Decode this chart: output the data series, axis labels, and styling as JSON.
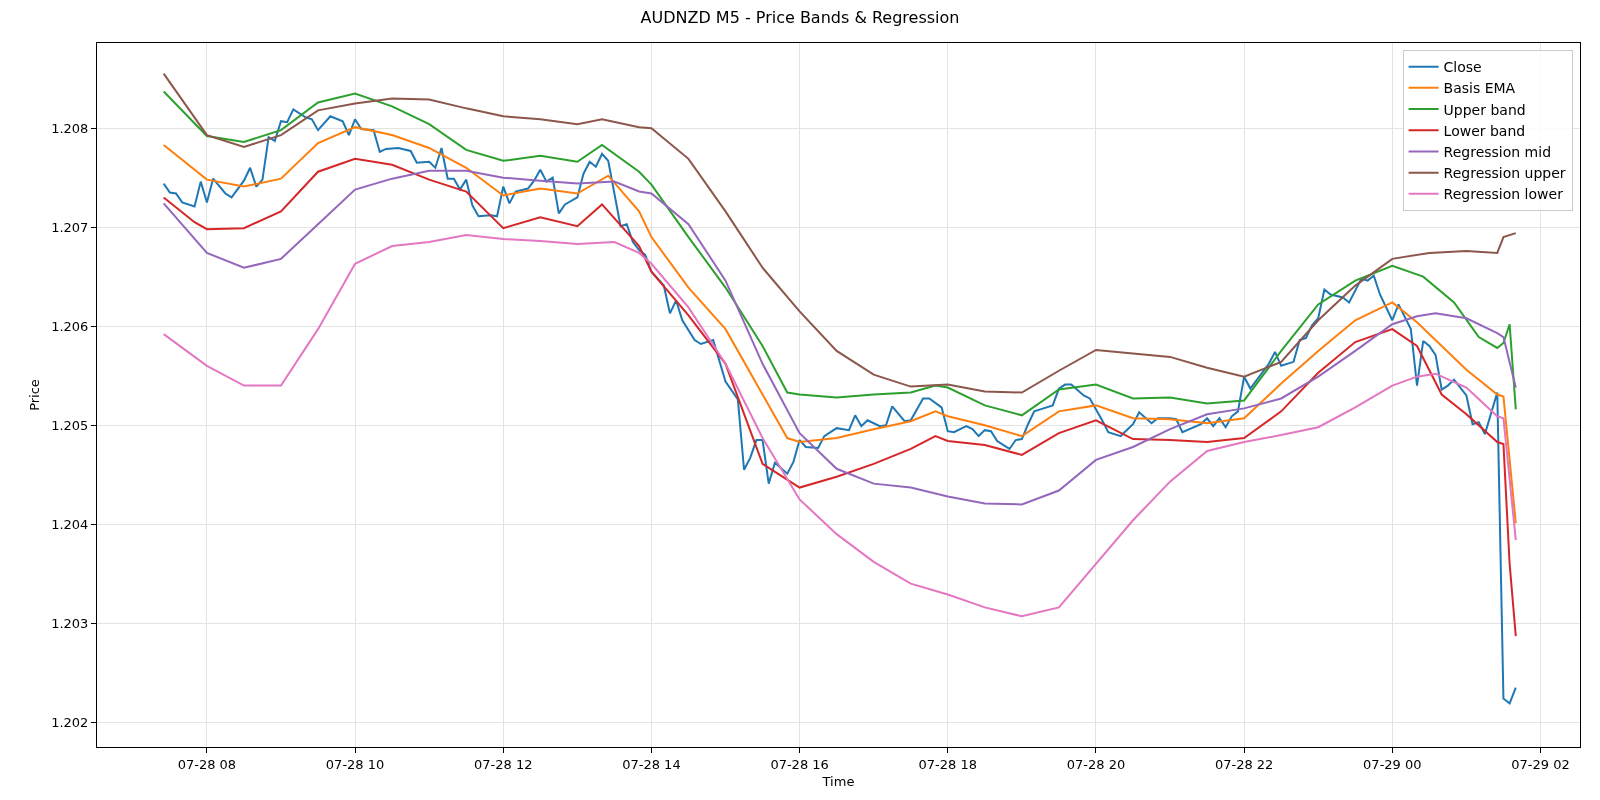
{
  "chart_data": {
    "type": "line",
    "title": "AUDNZD M5 - Price Bands & Regression",
    "xlabel": "Time",
    "ylabel": "Price",
    "xlim": [
      "--07-28T06:31",
      "--07-29T02:32"
    ],
    "xticks": [
      {
        "value": "--07-28T08:00",
        "label": "07-28 08"
      },
      {
        "value": "--07-28T10:00",
        "label": "07-28 10"
      },
      {
        "value": "--07-28T12:00",
        "label": "07-28 12"
      },
      {
        "value": "--07-28T14:00",
        "label": "07-28 14"
      },
      {
        "value": "--07-28T16:00",
        "label": "07-28 16"
      },
      {
        "value": "--07-28T18:00",
        "label": "07-28 18"
      },
      {
        "value": "--07-28T20:00",
        "label": "07-28 20"
      },
      {
        "value": "--07-28T22:00",
        "label": "07-28 22"
      },
      {
        "value": "--07-29T00:00",
        "label": "07-29 00"
      },
      {
        "value": "--07-29T02:00",
        "label": "07-29 02"
      }
    ],
    "ylim": [
      1.20175,
      1.20886
    ],
    "yticks": [
      1.202,
      1.203,
      1.204,
      1.205,
      1.206,
      1.207,
      1.208
    ],
    "grid": true,
    "legend": "top right",
    "line_style": "solid",
    "marker": "none",
    "series": [
      {
        "name": "Close",
        "color": "#1f77b4",
        "x": [
          "--07-28T07:25",
          "--07-28T07:30",
          "--07-28T07:35",
          "--07-28T07:40",
          "--07-28T07:50",
          "--07-28T07:55",
          "--07-28T08:00",
          "--07-28T08:05",
          "--07-28T08:15",
          "--07-28T08:20",
          "--07-28T08:30",
          "--07-28T08:35",
          "--07-28T08:40",
          "--07-28T08:45",
          "--07-28T08:50",
          "--07-28T08:55",
          "--07-28T09:00",
          "--07-28T09:05",
          "--07-28T09:10",
          "--07-28T09:20",
          "--07-28T09:25",
          "--07-28T09:30",
          "--07-28T09:40",
          "--07-28T09:50",
          "--07-28T09:55",
          "--07-28T10:00",
          "--07-28T10:05",
          "--07-28T10:15",
          "--07-28T10:20",
          "--07-28T10:25",
          "--07-28T10:35",
          "--07-28T10:45",
          "--07-28T10:50",
          "--07-28T11:00",
          "--07-28T11:05",
          "--07-28T11:10",
          "--07-28T11:15",
          "--07-28T11:20",
          "--07-28T11:25",
          "--07-28T11:30",
          "--07-28T11:35",
          "--07-28T11:40",
          "--07-28T11:50",
          "--07-28T11:55",
          "--07-28T12:00",
          "--07-28T12:05",
          "--07-28T12:10",
          "--07-28T12:20",
          "--07-28T12:25",
          "--07-28T12:30",
          "--07-28T12:35",
          "--07-28T12:40",
          "--07-28T12:45",
          "--07-28T12:50",
          "--07-28T13:00",
          "--07-28T13:05",
          "--07-28T13:10",
          "--07-28T13:15",
          "--07-28T13:20",
          "--07-28T13:25",
          "--07-28T13:35",
          "--07-28T13:40",
          "--07-28T13:45",
          "--07-28T13:50",
          "--07-28T13:55",
          "--07-28T14:00",
          "--07-28T14:10",
          "--07-28T14:15",
          "--07-28T14:20",
          "--07-28T14:25",
          "--07-28T14:35",
          "--07-28T14:40",
          "--07-28T14:50",
          "--07-28T15:00",
          "--07-28T15:10",
          "--07-28T15:15",
          "--07-28T15:20",
          "--07-28T15:25",
          "--07-28T15:30",
          "--07-28T15:35",
          "--07-28T15:40",
          "--07-28T15:50",
          "--07-28T15:55",
          "--07-28T16:00",
          "--07-28T16:05",
          "--07-28T16:15",
          "--07-28T16:20",
          "--07-28T16:30",
          "--07-28T16:40",
          "--07-28T16:45",
          "--07-28T16:50",
          "--07-28T16:55",
          "--07-28T17:05",
          "--07-28T17:10",
          "--07-28T17:15",
          "--07-28T17:25",
          "--07-28T17:30",
          "--07-28T17:40",
          "--07-28T17:45",
          "--07-28T17:55",
          "--07-28T18:00",
          "--07-28T18:05",
          "--07-28T18:15",
          "--07-28T18:20",
          "--07-28T18:25",
          "--07-28T18:30",
          "--07-28T18:35",
          "--07-28T18:40",
          "--07-28T18:50",
          "--07-28T18:55",
          "--07-28T19:00",
          "--07-28T19:05",
          "--07-28T19:10",
          "--07-28T19:15",
          "--07-28T19:25",
          "--07-28T19:30",
          "--07-28T19:35",
          "--07-28T19:40",
          "--07-28T19:50",
          "--07-28T19:55",
          "--07-28T20:05",
          "--07-28T20:10",
          "--07-28T20:20",
          "--07-28T20:30",
          "--07-28T20:35",
          "--07-28T20:45",
          "--07-28T20:50",
          "--07-28T21:00",
          "--07-28T21:05",
          "--07-28T21:10",
          "--07-28T21:25",
          "--07-28T21:30",
          "--07-28T21:35",
          "--07-28T21:40",
          "--07-28T21:45",
          "--07-28T21:50",
          "--07-28T21:55",
          "--07-28T22:00",
          "--07-28T22:05",
          "--07-28T22:20",
          "--07-28T22:25",
          "--07-28T22:30",
          "--07-28T22:40",
          "--07-28T22:45",
          "--07-28T22:50",
          "--07-28T22:55",
          "--07-28T23:00",
          "--07-28T23:05",
          "--07-28T23:10",
          "--07-28T23:20",
          "--07-28T23:25",
          "--07-28T23:35",
          "--07-28T23:40",
          "--07-28T23:45",
          "--07-28T23:50",
          "--07-29T00:00",
          "--07-29T00:05",
          "--07-29T00:15",
          "--07-29T00:20",
          "--07-29T00:25",
          "--07-29T00:30",
          "--07-29T00:35",
          "--07-29T00:40",
          "--07-29T00:45",
          "--07-29T00:50",
          "--07-29T01:00",
          "--07-29T01:05",
          "--07-29T01:10",
          "--07-29T01:15",
          "--07-29T01:25",
          "--07-29T01:30",
          "--07-29T01:35",
          "--07-29T01:40"
        ],
        "values": [
          1.20744,
          1.20735,
          1.20734,
          1.20725,
          1.20721,
          1.20746,
          1.20725,
          1.20749,
          1.20734,
          1.2073,
          1.20747,
          1.2076,
          1.20741,
          1.20748,
          1.20791,
          1.20787,
          1.20807,
          1.20806,
          1.20819,
          1.20811,
          1.20809,
          1.20798,
          1.20812,
          1.20807,
          1.20793,
          1.20809,
          1.20799,
          1.20798,
          1.20776,
          1.20779,
          1.2078,
          1.20777,
          1.20765,
          1.20766,
          1.2076,
          1.2078,
          1.20749,
          1.20749,
          1.20738,
          1.20748,
          1.20722,
          1.20711,
          1.20712,
          1.20711,
          1.20741,
          1.20724,
          1.20736,
          1.20739,
          1.20747,
          1.20758,
          1.20746,
          1.2075,
          1.20714,
          1.20723,
          1.2073,
          1.20754,
          1.20766,
          1.20761,
          1.20774,
          1.20767,
          1.20701,
          1.20703,
          1.20685,
          1.20677,
          1.20672,
          1.20655,
          1.20641,
          1.20613,
          1.20626,
          1.20606,
          1.20586,
          1.20582,
          1.20586,
          1.20544,
          1.20526,
          1.20455,
          1.20467,
          1.20485,
          1.20485,
          1.20441,
          1.20462,
          1.20451,
          1.20463,
          1.20485,
          1.20478,
          1.20477,
          1.20489,
          1.20497,
          1.20495,
          1.2051,
          1.20499,
          1.20505,
          1.20499,
          1.205,
          1.20519,
          1.20504,
          1.20505,
          1.20527,
          1.20527,
          1.20518,
          1.20494,
          1.20493,
          1.20499,
          1.20496,
          1.20489,
          1.20495,
          1.20494,
          1.20484,
          1.20476,
          1.20485,
          1.20486,
          1.20501,
          1.20514,
          1.20516,
          1.2052,
          1.20537,
          1.20541,
          1.20541,
          1.2053,
          1.20527,
          1.20505,
          1.20493,
          1.20489,
          1.20501,
          1.20513,
          1.20502,
          1.20507,
          1.20507,
          1.20506,
          1.20493,
          1.20501,
          1.20507,
          1.20499,
          1.20507,
          1.20498,
          1.20509,
          1.20514,
          1.20549,
          1.20537,
          1.20562,
          1.20574,
          1.2056,
          1.20564,
          1.20586,
          1.20588,
          1.20601,
          1.20608,
          1.20637,
          1.20632,
          1.20629,
          1.20624,
          1.20648,
          1.20646,
          1.20651,
          1.20632,
          1.20606,
          1.20622,
          1.20597,
          1.2054,
          1.20585,
          1.2058,
          1.20571,
          1.20536,
          1.2054,
          1.20546,
          1.2053,
          1.20501,
          1.20503,
          1.20491,
          1.20533,
          1.20224,
          1.20219,
          1.20235
        ]
      },
      {
        "name": "Basis EMA",
        "color": "#ff7f0e",
        "x": [
          "--07-28T07:25",
          "--07-28T08:00",
          "--07-28T08:30",
          "--07-28T09:00",
          "--07-28T09:30",
          "--07-28T10:00",
          "--07-28T10:30",
          "--07-28T11:00",
          "--07-28T11:30",
          "--07-28T12:00",
          "--07-28T12:30",
          "--07-28T13:00",
          "--07-28T13:25",
          "--07-28T13:50",
          "--07-28T14:00",
          "--07-28T14:30",
          "--07-28T15:00",
          "--07-28T15:30",
          "--07-28T15:50",
          "--07-28T16:00",
          "--07-28T16:30",
          "--07-28T17:00",
          "--07-28T17:30",
          "--07-28T17:50",
          "--07-28T18:00",
          "--07-28T18:30",
          "--07-28T19:00",
          "--07-28T19:30",
          "--07-28T20:00",
          "--07-28T20:30",
          "--07-28T21:00",
          "--07-28T21:30",
          "--07-28T22:00",
          "--07-28T22:30",
          "--07-28T23:00",
          "--07-28T23:30",
          "--07-29T00:00",
          "--07-29T00:20",
          "--07-29T00:40",
          "--07-29T01:00",
          "--07-29T01:25",
          "--07-29T01:30",
          "--07-29T01:40"
        ],
        "values": [
          1.20783,
          1.20748,
          1.20741,
          1.20749,
          1.20785,
          1.20801,
          1.20793,
          1.2078,
          1.2076,
          1.20732,
          1.20739,
          1.20734,
          1.20752,
          1.20716,
          1.2069,
          1.20639,
          1.20597,
          1.20531,
          1.20487,
          1.20483,
          1.20487,
          1.20496,
          1.20504,
          1.20514,
          1.20509,
          1.205,
          1.20489,
          1.20514,
          1.2052,
          1.20507,
          1.20506,
          1.20502,
          1.20507,
          1.20542,
          1.20575,
          1.20606,
          1.20624,
          1.20604,
          1.2058,
          1.20556,
          1.20531,
          1.20529,
          1.20401
        ]
      },
      {
        "name": "Upper band",
        "color": "#2ca02c",
        "x": [
          "--07-28T07:25",
          "--07-28T08:00",
          "--07-28T08:30",
          "--07-28T09:00",
          "--07-28T09:30",
          "--07-28T10:00",
          "--07-28T10:30",
          "--07-28T11:00",
          "--07-28T11:30",
          "--07-28T12:00",
          "--07-28T12:30",
          "--07-28T13:00",
          "--07-28T13:20",
          "--07-28T13:50",
          "--07-28T14:00",
          "--07-28T14:30",
          "--07-28T15:00",
          "--07-28T15:30",
          "--07-28T15:50",
          "--07-28T16:00",
          "--07-28T16:30",
          "--07-28T17:00",
          "--07-28T17:30",
          "--07-28T17:50",
          "--07-28T18:00",
          "--07-28T18:30",
          "--07-28T19:00",
          "--07-28T19:30",
          "--07-28T20:00",
          "--07-28T20:30",
          "--07-28T21:00",
          "--07-28T21:30",
          "--07-28T22:00",
          "--07-28T22:30",
          "--07-28T23:00",
          "--07-28T23:30",
          "--07-29T00:00",
          "--07-29T00:25",
          "--07-29T00:50",
          "--07-29T01:10",
          "--07-29T01:25",
          "--07-29T01:30",
          "--07-29T01:35",
          "--07-29T01:40"
        ],
        "values": [
          1.20837,
          1.20792,
          1.20786,
          1.20798,
          1.20826,
          1.20835,
          1.20822,
          1.20804,
          1.20778,
          1.20767,
          1.20772,
          1.20766,
          1.20783,
          1.20756,
          1.20743,
          1.2069,
          1.20639,
          1.2058,
          1.20533,
          1.20531,
          1.20528,
          1.20531,
          1.20533,
          1.2054,
          1.20538,
          1.2052,
          1.2051,
          1.20536,
          1.20541,
          1.20527,
          1.20528,
          1.20522,
          1.20525,
          1.20575,
          1.20622,
          1.20646,
          1.20661,
          1.2065,
          1.20624,
          1.20589,
          1.20578,
          1.20583,
          1.20602,
          1.20516
        ]
      },
      {
        "name": "Lower band",
        "color": "#d62728",
        "x": [
          "--07-28T07:25",
          "--07-28T07:50",
          "--07-28T08:00",
          "--07-28T08:30",
          "--07-28T09:00",
          "--07-28T09:30",
          "--07-28T10:00",
          "--07-28T10:30",
          "--07-28T11:00",
          "--07-28T11:30",
          "--07-28T12:00",
          "--07-28T12:30",
          "--07-28T13:00",
          "--07-28T13:20",
          "--07-28T13:50",
          "--07-28T14:00",
          "--07-28T14:30",
          "--07-28T15:00",
          "--07-28T15:30",
          "--07-28T16:00",
          "--07-28T16:30",
          "--07-28T17:00",
          "--07-28T17:30",
          "--07-28T17:50",
          "--07-28T18:00",
          "--07-28T18:30",
          "--07-28T19:00",
          "--07-28T19:30",
          "--07-28T20:00",
          "--07-28T20:30",
          "--07-28T21:00",
          "--07-28T21:30",
          "--07-28T22:00",
          "--07-28T22:30",
          "--07-28T23:00",
          "--07-28T23:30",
          "--07-29T00:00",
          "--07-29T00:20",
          "--07-29T00:40",
          "--07-29T01:00",
          "--07-29T01:25",
          "--07-29T01:30",
          "--07-29T01:35",
          "--07-29T01:40"
        ],
        "values": [
          1.2073,
          1.20705,
          1.20698,
          1.20699,
          1.20716,
          1.20756,
          1.20769,
          1.20763,
          1.20748,
          1.20736,
          1.20699,
          1.2071,
          1.20701,
          1.20723,
          1.20681,
          1.20655,
          1.20611,
          1.20562,
          1.20461,
          1.20437,
          1.20448,
          1.20461,
          1.20476,
          1.20489,
          1.20484,
          1.2048,
          1.2047,
          1.20492,
          1.20505,
          1.20486,
          1.20485,
          1.20483,
          1.20487,
          1.20514,
          1.20553,
          1.20584,
          1.20597,
          1.2058,
          1.20531,
          1.20511,
          1.20483,
          1.20481,
          1.2036,
          1.20287
        ]
      },
      {
        "name": "Regression mid",
        "color": "#9467bd",
        "x": [
          "--07-28T07:25",
          "--07-28T08:00",
          "--07-28T08:30",
          "--07-28T09:00",
          "--07-28T09:30",
          "--07-28T10:00",
          "--07-28T10:30",
          "--07-28T11:00",
          "--07-28T11:30",
          "--07-28T12:00",
          "--07-28T12:30",
          "--07-28T13:00",
          "--07-28T13:30",
          "--07-28T13:50",
          "--07-28T14:00",
          "--07-28T14:30",
          "--07-28T15:00",
          "--07-28T15:30",
          "--07-28T16:00",
          "--07-28T16:30",
          "--07-28T17:00",
          "--07-28T17:30",
          "--07-28T18:00",
          "--07-28T18:30",
          "--07-28T19:00",
          "--07-28T19:30",
          "--07-28T20:00",
          "--07-28T20:30",
          "--07-28T21:00",
          "--07-28T21:30",
          "--07-28T22:00",
          "--07-28T22:30",
          "--07-28T23:00",
          "--07-28T23:30",
          "--07-29T00:00",
          "--07-29T00:20",
          "--07-29T00:35",
          "--07-29T01:00",
          "--07-29T01:25",
          "--07-29T01:30",
          "--07-29T01:40"
        ],
        "values": [
          1.20724,
          1.20674,
          1.20659,
          1.20668,
          1.20703,
          1.20738,
          1.20749,
          1.20757,
          1.20757,
          1.2075,
          1.20747,
          1.20744,
          1.20746,
          1.20736,
          1.20734,
          1.20703,
          1.20646,
          1.20562,
          1.20492,
          1.20456,
          1.20441,
          1.20437,
          1.20428,
          1.20421,
          1.2042,
          1.20434,
          1.20465,
          1.20478,
          1.20496,
          1.20511,
          1.20517,
          1.20527,
          1.20549,
          1.20575,
          1.20602,
          1.2061,
          1.20613,
          1.20608,
          1.20593,
          1.20589,
          1.20538
        ]
      },
      {
        "name": "Regression upper",
        "color": "#8c564b",
        "x": [
          "--07-28T07:25",
          "--07-28T08:00",
          "--07-28T08:30",
          "--07-28T09:00",
          "--07-28T09:30",
          "--07-28T10:00",
          "--07-28T10:30",
          "--07-28T11:00",
          "--07-28T11:30",
          "--07-28T12:00",
          "--07-28T12:30",
          "--07-28T13:00",
          "--07-28T13:20",
          "--07-28T13:50",
          "--07-28T14:00",
          "--07-28T14:30",
          "--07-28T15:00",
          "--07-28T15:30",
          "--07-28T16:00",
          "--07-28T16:30",
          "--07-28T17:00",
          "--07-28T17:30",
          "--07-28T18:00",
          "--07-28T18:30",
          "--07-28T19:00",
          "--07-28T19:30",
          "--07-28T20:00",
          "--07-28T21:00",
          "--07-28T21:30",
          "--07-28T22:00",
          "--07-28T22:30",
          "--07-28T23:00",
          "--07-28T23:30",
          "--07-29T00:00",
          "--07-29T00:30",
          "--07-29T01:00",
          "--07-29T01:25",
          "--07-29T01:30",
          "--07-29T01:40"
        ],
        "values": [
          1.20855,
          1.20793,
          1.20781,
          1.20793,
          1.20818,
          1.20825,
          1.2083,
          1.20829,
          1.2082,
          1.20812,
          1.20809,
          1.20804,
          1.20809,
          1.20801,
          1.208,
          1.20769,
          1.20716,
          1.20659,
          1.20615,
          1.20575,
          1.20551,
          1.20539,
          1.20541,
          1.20534,
          1.20533,
          1.20555,
          1.20576,
          1.20569,
          1.20558,
          1.20549,
          1.20564,
          1.20606,
          1.20641,
          1.20668,
          1.20674,
          1.20676,
          1.20674,
          1.2069,
          1.20694
        ]
      },
      {
        "name": "Regression lower",
        "color": "#e377c2",
        "x": [
          "--07-28T07:25",
          "--07-28T08:00",
          "--07-28T08:30",
          "--07-28T09:00",
          "--07-28T09:30",
          "--07-28T10:00",
          "--07-28T10:30",
          "--07-28T11:00",
          "--07-28T11:30",
          "--07-28T12:00",
          "--07-28T12:30",
          "--07-28T13:00",
          "--07-28T13:30",
          "--07-28T13:50",
          "--07-28T14:00",
          "--07-28T14:30",
          "--07-28T15:00",
          "--07-28T15:30",
          "--07-28T16:00",
          "--07-28T16:30",
          "--07-28T17:00",
          "--07-28T17:30",
          "--07-28T18:00",
          "--07-28T18:30",
          "--07-28T19:00",
          "--07-28T19:30",
          "--07-28T20:00",
          "--07-28T20:30",
          "--07-28T21:00",
          "--07-28T21:30",
          "--07-28T22:00",
          "--07-28T22:30",
          "--07-28T23:00",
          "--07-28T23:30",
          "--07-29T00:00",
          "--07-29T00:20",
          "--07-29T00:35",
          "--07-29T01:00",
          "--07-29T01:25",
          "--07-29T01:30",
          "--07-29T01:40"
        ],
        "values": [
          1.20592,
          1.2056,
          1.2054,
          1.2054,
          1.20597,
          1.20663,
          1.20681,
          1.20685,
          1.20692,
          1.20688,
          1.20686,
          1.20683,
          1.20685,
          1.20674,
          1.20663,
          1.20619,
          1.20562,
          1.20487,
          1.20425,
          1.2039,
          1.20362,
          1.2034,
          1.20329,
          1.20316,
          1.20307,
          1.20316,
          1.2036,
          1.20404,
          1.20443,
          1.20474,
          1.20483,
          1.2049,
          1.20498,
          1.20518,
          1.2054,
          1.20549,
          1.20552,
          1.20538,
          1.20509,
          1.20507,
          1.20384
        ]
      }
    ]
  }
}
